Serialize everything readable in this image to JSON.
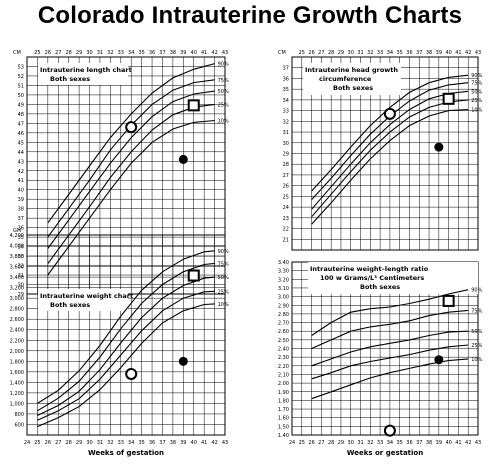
{
  "page": {
    "title": "Colorado Intrauterine Growth Charts"
  },
  "chart_data": [
    {
      "id": "length",
      "type": "line",
      "title": "Intrauterine length chart",
      "subtitle": "Both sexes",
      "xlabel": "",
      "ylabel": "CM",
      "xlim": [
        24,
        43
      ],
      "ylim": [
        29,
        54
      ],
      "x_ticks": [
        25,
        26,
        27,
        28,
        29,
        30,
        31,
        32,
        33,
        34,
        35,
        36,
        37,
        38,
        39,
        40,
        41,
        42,
        43
      ],
      "y_ticks": [
        29,
        30,
        31,
        32,
        33,
        34,
        35,
        36,
        37,
        38,
        39,
        40,
        41,
        42,
        43,
        44,
        45,
        46,
        47,
        48,
        49,
        50,
        51,
        52,
        53
      ],
      "series": [
        {
          "name": "90%",
          "x": [
            26,
            28,
            30,
            32,
            34,
            36,
            38,
            40,
            42
          ],
          "y": [
            36.5,
            39.5,
            42.5,
            45.5,
            48,
            50.2,
            51.8,
            52.7,
            53.3
          ]
        },
        {
          "name": "75%",
          "x": [
            26,
            28,
            30,
            32,
            34,
            36,
            38,
            40,
            42
          ],
          "y": [
            35,
            38,
            41,
            44.2,
            46.8,
            49,
            50.5,
            51.3,
            51.6
          ]
        },
        {
          "name": "50%",
          "x": [
            26,
            28,
            30,
            32,
            34,
            36,
            38,
            40,
            42
          ],
          "y": [
            33.8,
            36.8,
            39.8,
            42.8,
            45.5,
            47.7,
            49.3,
            50.1,
            50.4
          ]
        },
        {
          "name": "25%",
          "x": [
            26,
            28,
            30,
            32,
            34,
            36,
            38,
            40,
            42
          ],
          "y": [
            32.2,
            35.2,
            38.2,
            41.3,
            44,
            46.3,
            47.9,
            48.7,
            49
          ]
        },
        {
          "name": "10%",
          "x": [
            26,
            28,
            30,
            32,
            34,
            36,
            38,
            40,
            42
          ],
          "y": [
            31,
            34,
            37,
            40,
            42.8,
            45,
            46.4,
            47.1,
            47.3
          ]
        }
      ],
      "markers": [
        {
          "shape": "open-circle",
          "x": 34,
          "y": 46.6
        },
        {
          "shape": "square",
          "x": 40,
          "y": 48.9
        },
        {
          "shape": "filled-circle",
          "x": 39,
          "y": 43.2
        }
      ]
    },
    {
      "id": "weight",
      "type": "line",
      "title": "Intrauterine weight chart",
      "subtitle": "Both sexes",
      "xlabel": "Weeks of gestation",
      "ylabel": "GM",
      "xlim": [
        24,
        43
      ],
      "ylim": [
        400,
        4200
      ],
      "x_ticks": [
        24,
        25,
        26,
        27,
        28,
        29,
        30,
        31,
        32,
        33,
        34,
        35,
        36,
        37,
        38,
        39,
        40,
        41,
        42,
        43
      ],
      "y_ticks": [
        600,
        800,
        1000,
        1200,
        1400,
        1600,
        1800,
        2000,
        2200,
        2400,
        2600,
        2800,
        3000,
        3200,
        3400,
        3600,
        3800,
        4000,
        4200
      ],
      "series": [
        {
          "name": "90%",
          "x": [
            25,
            27,
            29,
            31,
            33,
            35,
            37,
            39,
            41,
            42
          ],
          "y": [
            1000,
            1250,
            1620,
            2100,
            2660,
            3150,
            3500,
            3740,
            3880,
            3900
          ]
        },
        {
          "name": "75%",
          "x": [
            25,
            27,
            29,
            31,
            33,
            35,
            37,
            39,
            41,
            42
          ],
          "y": [
            860,
            1100,
            1420,
            1880,
            2420,
            2900,
            3260,
            3500,
            3640,
            3660
          ]
        },
        {
          "name": "50%",
          "x": [
            25,
            27,
            29,
            31,
            33,
            35,
            37,
            39,
            41,
            42
          ],
          "y": [
            770,
            960,
            1230,
            1640,
            2150,
            2630,
            3000,
            3240,
            3380,
            3400
          ]
        },
        {
          "name": "25%",
          "x": [
            25,
            27,
            29,
            31,
            33,
            35,
            37,
            39,
            41,
            42
          ],
          "y": [
            680,
            860,
            1090,
            1460,
            1920,
            2380,
            2760,
            3000,
            3120,
            3130
          ]
        },
        {
          "name": "10%",
          "x": [
            25,
            27,
            29,
            31,
            33,
            35,
            37,
            39,
            41,
            42
          ],
          "y": [
            560,
            730,
            940,
            1260,
            1680,
            2140,
            2530,
            2760,
            2880,
            2890
          ]
        }
      ],
      "markers": [
        {
          "shape": "open-circle",
          "x": 34,
          "y": 1560
        },
        {
          "shape": "square",
          "x": 40,
          "y": 3430
        },
        {
          "shape": "filled-circle",
          "x": 39,
          "y": 1800
        }
      ]
    },
    {
      "id": "head",
      "type": "line",
      "title": "Intrauterine head growth",
      "subtitle": "circumference",
      "note": "Both sexes",
      "xlabel": "",
      "ylabel": "CM",
      "xlim": [
        24,
        43
      ],
      "ylim": [
        20,
        38
      ],
      "x_ticks": [
        25,
        26,
        27,
        28,
        29,
        30,
        31,
        32,
        33,
        34,
        35,
        36,
        37,
        38,
        39,
        40,
        41,
        42,
        43
      ],
      "y_ticks": [
        21,
        22,
        23,
        24,
        25,
        26,
        27,
        28,
        29,
        30,
        31,
        32,
        33,
        34,
        35,
        36,
        37
      ],
      "series": [
        {
          "name": "90%",
          "x": [
            26,
            28,
            30,
            32,
            34,
            36,
            38,
            40,
            42
          ],
          "y": [
            25.5,
            27.5,
            29.6,
            31.6,
            33.3,
            34.7,
            35.6,
            36.1,
            36.3
          ]
        },
        {
          "name": "75%",
          "x": [
            26,
            28,
            30,
            32,
            34,
            36,
            38,
            40,
            42
          ],
          "y": [
            24.7,
            26.7,
            28.8,
            30.8,
            32.5,
            33.9,
            34.9,
            35.4,
            35.6
          ]
        },
        {
          "name": "50%",
          "x": [
            26,
            28,
            30,
            32,
            34,
            36,
            38,
            40,
            42
          ],
          "y": [
            23.8,
            25.9,
            28,
            30,
            31.7,
            33.1,
            34.1,
            34.6,
            34.8
          ]
        },
        {
          "name": "25%",
          "x": [
            26,
            28,
            30,
            32,
            34,
            36,
            38,
            40,
            42
          ],
          "y": [
            23.1,
            25.2,
            27.3,
            29.3,
            31,
            32.4,
            33.3,
            33.8,
            34
          ]
        },
        {
          "name": "10%",
          "x": [
            26,
            28,
            30,
            32,
            34,
            36,
            38,
            40,
            42
          ],
          "y": [
            22.4,
            24.4,
            26.5,
            28.5,
            30.2,
            31.6,
            32.5,
            33,
            33.1
          ]
        }
      ],
      "markers": [
        {
          "shape": "open-circle",
          "x": 34,
          "y": 32.7
        },
        {
          "shape": "square",
          "x": 40,
          "y": 34.1
        },
        {
          "shape": "filled-circle",
          "x": 39,
          "y": 29.6
        }
      ]
    },
    {
      "id": "ratio",
      "type": "line",
      "title": "Intrauterine weight–length ratio",
      "subtitle": "100 w Grams/L³ Centimeters",
      "note": "Both sexes",
      "xlabel": "Weeks or gestation",
      "ylabel": "",
      "xlim": [
        24,
        43
      ],
      "ylim": [
        1.4,
        3.4
      ],
      "x_ticks": [
        24,
        25,
        26,
        27,
        28,
        29,
        30,
        31,
        32,
        33,
        34,
        35,
        36,
        37,
        38,
        39,
        40,
        41,
        42,
        43
      ],
      "y_ticks": [
        1.4,
        1.5,
        1.6,
        1.7,
        1.8,
        1.9,
        2.0,
        2.1,
        2.2,
        2.3,
        2.4,
        2.5,
        2.6,
        2.7,
        2.8,
        2.9,
        3.0,
        3.1,
        3.2,
        3.3,
        3.4
      ],
      "y_tick_labels": [
        "1.40",
        "1.50",
        "1.60",
        "1.70",
        "1.80",
        "1.90",
        "2.00",
        "2.10",
        "2.20",
        "2.30",
        "2.40",
        "2.50",
        "2.60",
        "2.70",
        "2.80",
        "2.90",
        "3.00",
        "3.10",
        "3.20",
        "3.30",
        "3.40"
      ],
      "series": [
        {
          "name": "90%",
          "x": [
            26,
            28,
            30,
            32,
            34,
            36,
            38,
            40,
            42
          ],
          "y": [
            2.55,
            2.7,
            2.82,
            2.86,
            2.88,
            2.92,
            2.97,
            3.03,
            3.08
          ]
        },
        {
          "name": "75%",
          "x": [
            26,
            28,
            30,
            32,
            34,
            36,
            38,
            40,
            42
          ],
          "y": [
            2.4,
            2.5,
            2.6,
            2.65,
            2.68,
            2.72,
            2.78,
            2.82,
            2.84
          ]
        },
        {
          "name": "50%",
          "x": [
            26,
            28,
            30,
            32,
            34,
            36,
            38,
            40,
            42
          ],
          "y": [
            2.2,
            2.28,
            2.36,
            2.42,
            2.46,
            2.5,
            2.55,
            2.59,
            2.6
          ]
        },
        {
          "name": "25%",
          "x": [
            26,
            28,
            30,
            32,
            34,
            36,
            38,
            40,
            42
          ],
          "y": [
            2.05,
            2.12,
            2.2,
            2.25,
            2.29,
            2.33,
            2.38,
            2.42,
            2.44
          ]
        },
        {
          "name": "10%",
          "x": [
            26,
            28,
            30,
            32,
            34,
            36,
            38,
            40,
            42
          ],
          "y": [
            1.82,
            1.9,
            1.98,
            2.06,
            2.12,
            2.17,
            2.22,
            2.26,
            2.28
          ]
        }
      ],
      "markers": [
        {
          "shape": "open-circle",
          "x": 34,
          "y": 1.45
        },
        {
          "shape": "square",
          "x": 40,
          "y": 2.95
        },
        {
          "shape": "filled-circle",
          "x": 39,
          "y": 2.27
        }
      ]
    }
  ]
}
